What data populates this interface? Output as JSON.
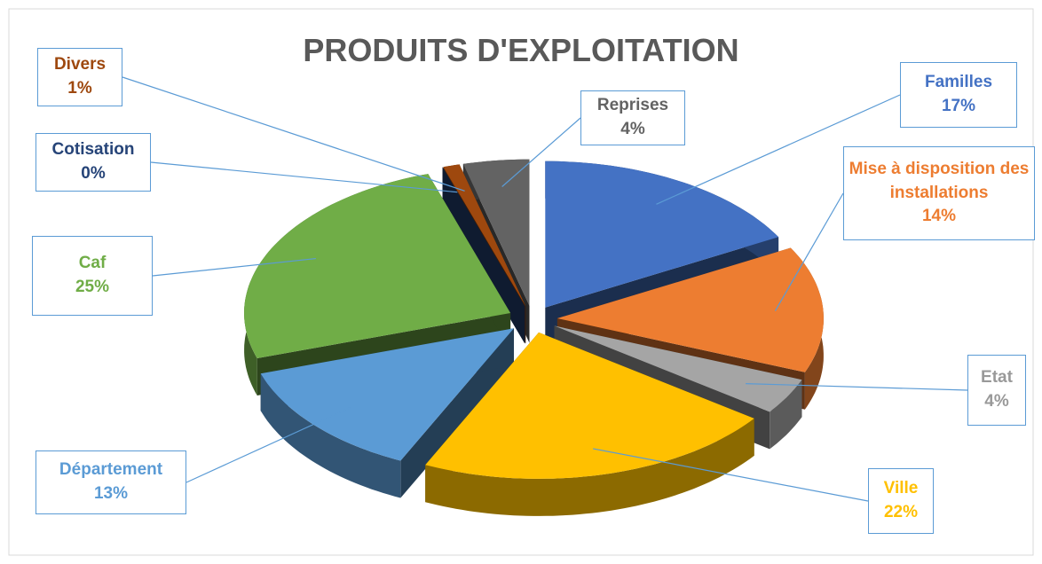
{
  "chart_data": {
    "type": "pie",
    "title": "PRODUITS D'EXPLOITATION",
    "categories": [
      "Familles",
      "Mise à disposition des installations",
      "Etat",
      "Ville",
      "Département",
      "Caf",
      "Cotisation",
      "Divers",
      "Reprises"
    ],
    "values": [
      17,
      14,
      4,
      22,
      13,
      25,
      0,
      1,
      4
    ],
    "value_labels": [
      "17%",
      "14%",
      "4%",
      "22%",
      "13%",
      "25%",
      "0%",
      "1%",
      "4%"
    ],
    "colors": [
      "#4472c4",
      "#ed7d31",
      "#a5a5a5",
      "#ffc000",
      "#5b9bd5",
      "#70ad47",
      "#264478",
      "#9e480e",
      "#636363"
    ]
  }
}
